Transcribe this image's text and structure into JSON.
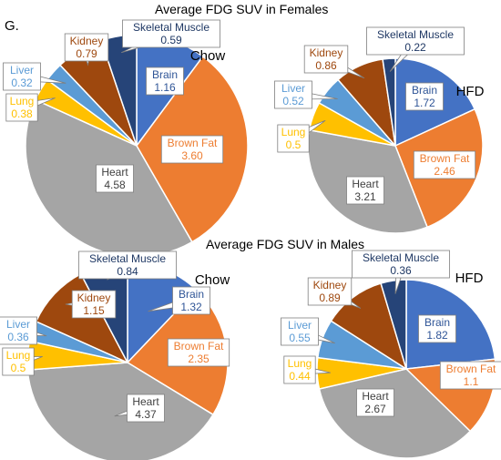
{
  "figure": {
    "panel_label": "G.",
    "title_females": "Average FDG SUV in Females",
    "title_males": "Average FDG SUV in Males"
  },
  "colors": {
    "brain": "#4472C4",
    "brown_fat": "#ED7D31",
    "heart": "#A5A5A5",
    "lung": "#FFC000",
    "liver": "#5B9BD5",
    "kidney": "#9E480E",
    "skeletal_muscle": "#264478"
  },
  "chart_data": [
    {
      "type": "pie",
      "title": "Average FDG SUV in Females",
      "condition": "Chow",
      "categories": [
        "Brain",
        "Brown Fat",
        "Heart",
        "Lung",
        "Liver",
        "Kidney",
        "Skeletal Muscle"
      ],
      "values": [
        1.16,
        3.6,
        4.58,
        0.38,
        0.32,
        0.79,
        0.59
      ],
      "value_labels": [
        "1.16",
        "3.60",
        "4.58",
        "0.38",
        "0.32",
        "0.79",
        "0.59"
      ]
    },
    {
      "type": "pie",
      "title": "Average FDG SUV in Females",
      "condition": "HFD",
      "categories": [
        "Brain",
        "Brown Fat",
        "Heart",
        "Lung",
        "Liver",
        "Kidney",
        "Skeletal Muscle"
      ],
      "values": [
        1.72,
        2.46,
        3.21,
        0.5,
        0.52,
        0.86,
        0.22
      ],
      "value_labels": [
        "1.72",
        "2.46",
        "3.21",
        "0.5",
        "0.52",
        "0.86",
        "0.22"
      ]
    },
    {
      "type": "pie",
      "title": "Average FDG SUV in Males",
      "condition": "Chow",
      "categories": [
        "Brain",
        "Brown Fat",
        "Heart",
        "Lung",
        "Liver",
        "Kidney",
        "Skeletal Muscle"
      ],
      "values": [
        1.32,
        2.35,
        4.37,
        0.5,
        0.36,
        1.15,
        0.84
      ],
      "value_labels": [
        "1.32",
        "2.35",
        "4.37",
        "0.5",
        "0.36",
        "1.15",
        "0.84"
      ]
    },
    {
      "type": "pie",
      "title": "Average FDG SUV in Males",
      "condition": "HFD",
      "categories": [
        "Brain",
        "Brown Fat",
        "Heart",
        "Lung",
        "Liver",
        "Kidney",
        "Skeletal Muscle"
      ],
      "values": [
        1.82,
        1.1,
        2.67,
        0.44,
        0.55,
        0.89,
        0.36
      ],
      "value_labels": [
        "1.82",
        "1.1",
        "2.67",
        "0.44",
        "0.55",
        "0.89",
        "0.36"
      ]
    }
  ]
}
